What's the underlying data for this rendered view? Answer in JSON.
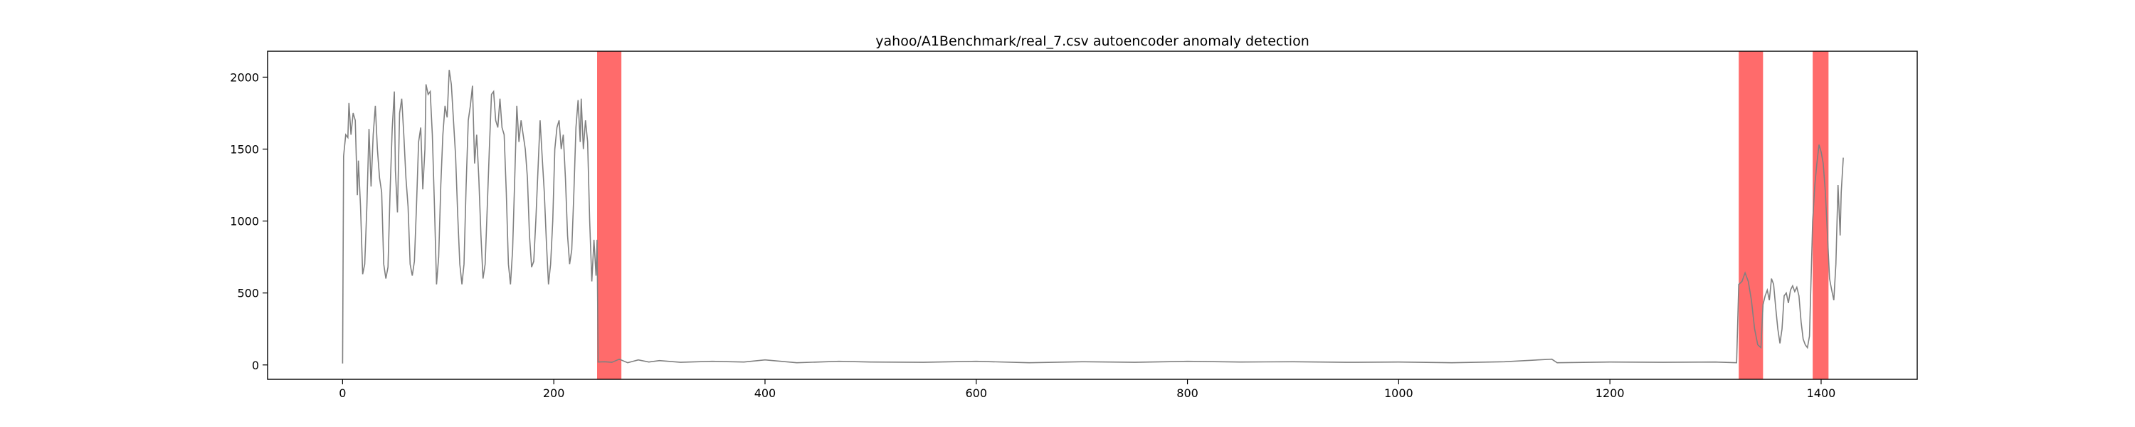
{
  "chart_data": {
    "type": "line",
    "title": "yahoo/A1Benchmark/real_7.csv autoencoder anomaly detection",
    "xlabel": "",
    "ylabel": "",
    "xlim": [
      -71,
      1491
    ],
    "ylim": [
      -100,
      2180
    ],
    "xticks": [
      0,
      200,
      400,
      600,
      800,
      1000,
      1200,
      1400
    ],
    "yticks": [
      0,
      500,
      1000,
      1500,
      2000
    ],
    "grid": false,
    "line_color": "#808080",
    "anomaly_color": "#ff6b6b",
    "anomaly_ranges": [
      [
        241,
        264
      ],
      [
        1322,
        1345
      ],
      [
        1392,
        1407
      ]
    ],
    "series": [
      {
        "values": [
          [
            0,
            10
          ],
          [
            1,
            1450
          ],
          [
            3,
            1600
          ],
          [
            5,
            1580
          ],
          [
            6,
            1820
          ],
          [
            8,
            1600
          ],
          [
            10,
            1750
          ],
          [
            12,
            1700
          ],
          [
            14,
            1180
          ],
          [
            15,
            1420
          ],
          [
            17,
            1100
          ],
          [
            19,
            630
          ],
          [
            21,
            700
          ],
          [
            23,
            1100
          ],
          [
            25,
            1640
          ],
          [
            27,
            1240
          ],
          [
            29,
            1600
          ],
          [
            31,
            1800
          ],
          [
            33,
            1500
          ],
          [
            35,
            1300
          ],
          [
            37,
            1200
          ],
          [
            39,
            700
          ],
          [
            41,
            600
          ],
          [
            43,
            680
          ],
          [
            45,
            1200
          ],
          [
            47,
            1640
          ],
          [
            49,
            1900
          ],
          [
            50,
            1350
          ],
          [
            52,
            1060
          ],
          [
            54,
            1750
          ],
          [
            56,
            1850
          ],
          [
            58,
            1600
          ],
          [
            60,
            1300
          ],
          [
            62,
            1100
          ],
          [
            64,
            700
          ],
          [
            66,
            620
          ],
          [
            68,
            720
          ],
          [
            70,
            1100
          ],
          [
            72,
            1550
          ],
          [
            74,
            1650
          ],
          [
            76,
            1220
          ],
          [
            78,
            1500
          ],
          [
            79,
            1950
          ],
          [
            81,
            1880
          ],
          [
            83,
            1900
          ],
          [
            85,
            1600
          ],
          [
            87,
            1100
          ],
          [
            89,
            560
          ],
          [
            91,
            750
          ],
          [
            93,
            1250
          ],
          [
            95,
            1600
          ],
          [
            97,
            1800
          ],
          [
            99,
            1720
          ],
          [
            101,
            2050
          ],
          [
            103,
            1950
          ],
          [
            105,
            1700
          ],
          [
            107,
            1450
          ],
          [
            109,
            1050
          ],
          [
            111,
            700
          ],
          [
            113,
            560
          ],
          [
            115,
            700
          ],
          [
            117,
            1250
          ],
          [
            119,
            1700
          ],
          [
            121,
            1800
          ],
          [
            123,
            1940
          ],
          [
            125,
            1400
          ],
          [
            127,
            1600
          ],
          [
            129,
            1300
          ],
          [
            131,
            900
          ],
          [
            133,
            600
          ],
          [
            135,
            700
          ],
          [
            137,
            1100
          ],
          [
            139,
            1500
          ],
          [
            141,
            1880
          ],
          [
            143,
            1900
          ],
          [
            145,
            1700
          ],
          [
            147,
            1650
          ],
          [
            149,
            1850
          ],
          [
            151,
            1650
          ],
          [
            153,
            1600
          ],
          [
            155,
            1200
          ],
          [
            157,
            700
          ],
          [
            159,
            560
          ],
          [
            161,
            800
          ],
          [
            163,
            1300
          ],
          [
            165,
            1800
          ],
          [
            167,
            1550
          ],
          [
            169,
            1700
          ],
          [
            171,
            1600
          ],
          [
            173,
            1500
          ],
          [
            175,
            1300
          ],
          [
            177,
            900
          ],
          [
            179,
            680
          ],
          [
            181,
            720
          ],
          [
            183,
            1000
          ],
          [
            185,
            1350
          ],
          [
            187,
            1700
          ],
          [
            189,
            1450
          ],
          [
            191,
            1200
          ],
          [
            193,
            850
          ],
          [
            195,
            560
          ],
          [
            197,
            700
          ],
          [
            199,
            1000
          ],
          [
            201,
            1500
          ],
          [
            203,
            1650
          ],
          [
            205,
            1700
          ],
          [
            207,
            1500
          ],
          [
            209,
            1600
          ],
          [
            211,
            1300
          ],
          [
            213,
            900
          ],
          [
            215,
            700
          ],
          [
            217,
            800
          ],
          [
            219,
            1200
          ],
          [
            221,
            1650
          ],
          [
            223,
            1840
          ],
          [
            225,
            1550
          ],
          [
            226,
            1850
          ],
          [
            228,
            1500
          ],
          [
            230,
            1700
          ],
          [
            232,
            1550
          ],
          [
            234,
            1000
          ],
          [
            236,
            580
          ],
          [
            238,
            870
          ],
          [
            240,
            620
          ],
          [
            241,
            870
          ],
          [
            242,
            20
          ],
          [
            248,
            22
          ],
          [
            255,
            18
          ],
          [
            262,
            40
          ],
          [
            270,
            15
          ],
          [
            280,
            35
          ],
          [
            290,
            20
          ],
          [
            300,
            30
          ],
          [
            320,
            18
          ],
          [
            350,
            25
          ],
          [
            380,
            20
          ],
          [
            400,
            35
          ],
          [
            430,
            15
          ],
          [
            470,
            25
          ],
          [
            500,
            20
          ],
          [
            550,
            18
          ],
          [
            600,
            25
          ],
          [
            650,
            15
          ],
          [
            700,
            22
          ],
          [
            750,
            18
          ],
          [
            800,
            25
          ],
          [
            850,
            20
          ],
          [
            900,
            22
          ],
          [
            950,
            18
          ],
          [
            1000,
            20
          ],
          [
            1050,
            15
          ],
          [
            1100,
            22
          ],
          [
            1145,
            40
          ],
          [
            1150,
            15
          ],
          [
            1200,
            20
          ],
          [
            1250,
            18
          ],
          [
            1300,
            20
          ],
          [
            1320,
            15
          ],
          [
            1322,
            560
          ],
          [
            1325,
            580
          ],
          [
            1328,
            640
          ],
          [
            1331,
            580
          ],
          [
            1334,
            450
          ],
          [
            1337,
            250
          ],
          [
            1340,
            140
          ],
          [
            1343,
            120
          ],
          [
            1345,
            420
          ],
          [
            1347,
            480
          ],
          [
            1349,
            520
          ],
          [
            1351,
            450
          ],
          [
            1353,
            600
          ],
          [
            1355,
            560
          ],
          [
            1357,
            400
          ],
          [
            1359,
            250
          ],
          [
            1361,
            150
          ],
          [
            1363,
            250
          ],
          [
            1365,
            480
          ],
          [
            1367,
            500
          ],
          [
            1369,
            430
          ],
          [
            1371,
            520
          ],
          [
            1373,
            550
          ],
          [
            1375,
            510
          ],
          [
            1377,
            540
          ],
          [
            1379,
            480
          ],
          [
            1381,
            300
          ],
          [
            1383,
            180
          ],
          [
            1385,
            140
          ],
          [
            1387,
            120
          ],
          [
            1389,
            200
          ],
          [
            1392,
            1000
          ],
          [
            1394,
            1250
          ],
          [
            1396,
            1400
          ],
          [
            1398,
            1530
          ],
          [
            1400,
            1480
          ],
          [
            1402,
            1400
          ],
          [
            1404,
            1200
          ],
          [
            1406,
            900
          ],
          [
            1408,
            600
          ],
          [
            1410,
            520
          ],
          [
            1412,
            450
          ],
          [
            1414,
            700
          ],
          [
            1416,
            1250
          ],
          [
            1418,
            900
          ],
          [
            1419,
            1200
          ],
          [
            1421,
            1440
          ]
        ]
      }
    ]
  }
}
